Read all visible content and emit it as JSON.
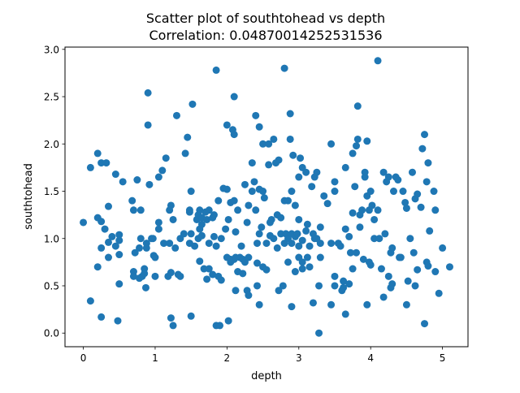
{
  "chart_data": {
    "type": "scatter",
    "title": "Scatter plot of southtohead vs depth",
    "subtitle": "Correlation: 0.04870014252531536",
    "xlabel": "depth",
    "ylabel": "southtohead",
    "xlim": [
      -0.255,
      5.355
    ],
    "ylim": [
      -0.144,
      3.024
    ],
    "xticks": [
      "0",
      "1",
      "2",
      "3",
      "4",
      "5"
    ],
    "yticks": [
      "0.0",
      "0.5",
      "1.0",
      "1.5",
      "2.0",
      "2.5",
      "3.0"
    ],
    "grid": false,
    "legend": "none",
    "marker_color": "#1f77b4",
    "points": [
      [
        0.0,
        1.17
      ],
      [
        0.1,
        0.34
      ],
      [
        0.1,
        1.75
      ],
      [
        0.2,
        1.9
      ],
      [
        0.2,
        1.22
      ],
      [
        0.2,
        0.7
      ],
      [
        0.25,
        1.8
      ],
      [
        0.25,
        1.18
      ],
      [
        0.25,
        0.9
      ],
      [
        0.25,
        0.17
      ],
      [
        0.3,
        1.1
      ],
      [
        0.32,
        1.8
      ],
      [
        0.35,
        0.96
      ],
      [
        0.35,
        0.8
      ],
      [
        0.35,
        1.34
      ],
      [
        0.4,
        1.02
      ],
      [
        0.45,
        1.68
      ],
      [
        0.45,
        0.92
      ],
      [
        0.48,
        0.13
      ],
      [
        0.5,
        0.52
      ],
      [
        0.5,
        0.98
      ],
      [
        0.5,
        1.04
      ],
      [
        0.5,
        0.83
      ],
      [
        0.55,
        1.6
      ],
      [
        0.68,
        1.4
      ],
      [
        0.7,
        0.65
      ],
      [
        0.7,
        0.6
      ],
      [
        0.7,
        1.3
      ],
      [
        0.72,
        0.85
      ],
      [
        0.75,
        1.62
      ],
      [
        0.78,
        0.58
      ],
      [
        0.78,
        0.9
      ],
      [
        0.8,
        1.3
      ],
      [
        0.8,
        1.0
      ],
      [
        0.82,
        0.6
      ],
      [
        0.85,
        0.68
      ],
      [
        0.85,
        0.63
      ],
      [
        0.87,
        0.48
      ],
      [
        0.88,
        0.95
      ],
      [
        0.88,
        0.9
      ],
      [
        0.9,
        2.54
      ],
      [
        0.9,
        2.2
      ],
      [
        0.92,
        1.57
      ],
      [
        0.95,
        1.0
      ],
      [
        0.97,
        1.0
      ],
      [
        0.98,
        0.82
      ],
      [
        1.0,
        0.8
      ],
      [
        1.0,
        0.6
      ],
      [
        1.05,
        1.17
      ],
      [
        1.05,
        1.65
      ],
      [
        1.05,
        1.1
      ],
      [
        1.1,
        1.72
      ],
      [
        1.12,
        0.95
      ],
      [
        1.15,
        1.85
      ],
      [
        1.18,
        0.6
      ],
      [
        1.2,
        1.3
      ],
      [
        1.2,
        0.95
      ],
      [
        1.22,
        1.35
      ],
      [
        1.22,
        0.64
      ],
      [
        1.22,
        0.16
      ],
      [
        1.25,
        0.08
      ],
      [
        1.25,
        1.2
      ],
      [
        1.28,
        0.9
      ],
      [
        1.3,
        2.3
      ],
      [
        1.32,
        0.62
      ],
      [
        1.35,
        0.6
      ],
      [
        1.35,
        1.0
      ],
      [
        1.4,
        1.05
      ],
      [
        1.42,
        1.9
      ],
      [
        1.45,
        2.07
      ],
      [
        1.48,
        1.28
      ],
      [
        1.48,
        1.3
      ],
      [
        1.48,
        0.95
      ],
      [
        1.5,
        0.18
      ],
      [
        1.5,
        1.5
      ],
      [
        1.5,
        1.05
      ],
      [
        1.52,
        2.42
      ],
      [
        1.55,
        0.92
      ],
      [
        1.58,
        1.2
      ],
      [
        1.6,
        1.0
      ],
      [
        1.6,
        1.25
      ],
      [
        1.62,
        1.1
      ],
      [
        1.62,
        1.3
      ],
      [
        1.62,
        0.76
      ],
      [
        1.65,
        1.15
      ],
      [
        1.65,
        1.22
      ],
      [
        1.65,
        1.03
      ],
      [
        1.68,
        0.68
      ],
      [
        1.7,
        1.28
      ],
      [
        1.72,
        1.2
      ],
      [
        1.72,
        0.57
      ],
      [
        1.75,
        0.95
      ],
      [
        1.75,
        0.68
      ],
      [
        1.75,
        1.3
      ],
      [
        1.8,
        1.22
      ],
      [
        1.8,
        0.62
      ],
      [
        1.82,
        1.25
      ],
      [
        1.82,
        1.02
      ],
      [
        1.85,
        2.78
      ],
      [
        1.85,
        0.08
      ],
      [
        1.85,
        0.92
      ],
      [
        1.88,
        0.6
      ],
      [
        1.88,
        1.4
      ],
      [
        1.9,
        0.08
      ],
      [
        1.92,
        0.56
      ],
      [
        1.92,
        1.0
      ],
      [
        1.95,
        1.53
      ],
      [
        1.98,
        1.1
      ],
      [
        2.0,
        0.8
      ],
      [
        2.0,
        2.2
      ],
      [
        2.0,
        1.52
      ],
      [
        2.02,
        1.2
      ],
      [
        2.02,
        0.13
      ],
      [
        2.05,
        0.75
      ],
      [
        2.05,
        0.78
      ],
      [
        2.05,
        1.38
      ],
      [
        2.08,
        2.15
      ],
      [
        2.1,
        2.5
      ],
      [
        2.1,
        2.1
      ],
      [
        2.1,
        1.4
      ],
      [
        2.1,
        0.78
      ],
      [
        2.12,
        0.8
      ],
      [
        2.12,
        0.45
      ],
      [
        2.12,
        1.07
      ],
      [
        2.15,
        0.65
      ],
      [
        2.15,
        1.3
      ],
      [
        2.18,
        0.8
      ],
      [
        2.2,
        0.92
      ],
      [
        2.22,
        0.63
      ],
      [
        2.22,
        0.78
      ],
      [
        2.25,
        1.57
      ],
      [
        2.25,
        0.75
      ],
      [
        2.28,
        0.45
      ],
      [
        2.28,
        1.17
      ],
      [
        2.3,
        1.35
      ],
      [
        2.3,
        0.4
      ],
      [
        2.3,
        0.8
      ],
      [
        2.35,
        1.8
      ],
      [
        2.35,
        1.5
      ],
      [
        2.38,
        1.6
      ],
      [
        2.4,
        2.3
      ],
      [
        2.4,
        1.3
      ],
      [
        2.42,
        0.5
      ],
      [
        2.42,
        0.95
      ],
      [
        2.42,
        0.74
      ],
      [
        2.45,
        2.18
      ],
      [
        2.45,
        0.3
      ],
      [
        2.45,
        1.52
      ],
      [
        2.45,
        1.05
      ],
      [
        2.48,
        1.12
      ],
      [
        2.5,
        2.0
      ],
      [
        2.5,
        1.5
      ],
      [
        2.5,
        0.7
      ],
      [
        2.52,
        1.43
      ],
      [
        2.55,
        0.67
      ],
      [
        2.55,
        0.95
      ],
      [
        2.58,
        2.0
      ],
      [
        2.58,
        1.78
      ],
      [
        2.6,
        1.03
      ],
      [
        2.6,
        1.17
      ],
      [
        2.62,
        1.2
      ],
      [
        2.65,
        2.05
      ],
      [
        2.65,
        1.0
      ],
      [
        2.68,
        1.8
      ],
      [
        2.7,
        1.25
      ],
      [
        2.7,
        0.9
      ],
      [
        2.72,
        1.83
      ],
      [
        2.72,
        0.45
      ],
      [
        2.75,
        1.05
      ],
      [
        2.75,
        1.22
      ],
      [
        2.78,
        0.5
      ],
      [
        2.8,
        2.8
      ],
      [
        2.8,
        1.4
      ],
      [
        2.8,
        0.95
      ],
      [
        2.82,
        1.05
      ],
      [
        2.85,
        1.0
      ],
      [
        2.85,
        1.4
      ],
      [
        2.85,
        0.75
      ],
      [
        2.88,
        2.32
      ],
      [
        2.88,
        2.05
      ],
      [
        2.9,
        1.5
      ],
      [
        2.9,
        1.05
      ],
      [
        2.9,
        0.95
      ],
      [
        2.9,
        0.28
      ],
      [
        2.92,
        1.88
      ],
      [
        2.95,
        1.35
      ],
      [
        2.95,
        1.02
      ],
      [
        2.95,
        0.65
      ],
      [
        2.98,
        1.05
      ],
      [
        3.0,
        1.65
      ],
      [
        3.0,
        0.8
      ],
      [
        3.0,
        1.2
      ],
      [
        3.0,
        0.92
      ],
      [
        3.02,
        1.85
      ],
      [
        3.05,
        1.75
      ],
      [
        3.05,
        0.98
      ],
      [
        3.05,
        0.75
      ],
      [
        3.05,
        0.68
      ],
      [
        3.1,
        1.7
      ],
      [
        3.1,
        1.08
      ],
      [
        3.12,
        1.15
      ],
      [
        3.12,
        0.8
      ],
      [
        3.15,
        0.7
      ],
      [
        3.15,
        0.92
      ],
      [
        3.18,
        1.55
      ],
      [
        3.2,
        1.05
      ],
      [
        3.2,
        0.32
      ],
      [
        3.22,
        1.65
      ],
      [
        3.22,
        1.0
      ],
      [
        3.25,
        1.7
      ],
      [
        3.25,
        1.0
      ],
      [
        3.28,
        0.5
      ],
      [
        3.28,
        0.0
      ],
      [
        3.3,
        1.12
      ],
      [
        3.3,
        0.95
      ],
      [
        3.3,
        0.8
      ],
      [
        3.35,
        1.45
      ],
      [
        3.4,
        1.37
      ],
      [
        3.45,
        2.0
      ],
      [
        3.45,
        0.3
      ],
      [
        3.45,
        0.95
      ],
      [
        3.5,
        1.5
      ],
      [
        3.5,
        1.6
      ],
      [
        3.5,
        0.6
      ],
      [
        3.5,
        0.5
      ],
      [
        3.55,
        0.95
      ],
      [
        3.58,
        0.92
      ],
      [
        3.6,
        0.45
      ],
      [
        3.62,
        0.48
      ],
      [
        3.62,
        0.55
      ],
      [
        3.65,
        1.75
      ],
      [
        3.65,
        1.1
      ],
      [
        3.65,
        0.2
      ],
      [
        3.7,
        1.02
      ],
      [
        3.7,
        0.52
      ],
      [
        3.72,
        0.85
      ],
      [
        3.75,
        1.9
      ],
      [
        3.75,
        1.27
      ],
      [
        3.75,
        0.68
      ],
      [
        3.78,
        1.55
      ],
      [
        3.8,
        0.85
      ],
      [
        3.8,
        1.98
      ],
      [
        3.82,
        2.4
      ],
      [
        3.82,
        2.05
      ],
      [
        3.85,
        1.12
      ],
      [
        3.85,
        1.25
      ],
      [
        3.88,
        1.3
      ],
      [
        3.9,
        0.78
      ],
      [
        3.92,
        1.65
      ],
      [
        3.92,
        1.7
      ],
      [
        3.95,
        2.03
      ],
      [
        3.95,
        0.3
      ],
      [
        3.95,
        1.45
      ],
      [
        3.98,
        1.3
      ],
      [
        3.98,
        0.75
      ],
      [
        4.0,
        0.72
      ],
      [
        4.0,
        1.5
      ],
      [
        4.02,
        1.35
      ],
      [
        4.05,
        1.2
      ],
      [
        4.05,
        1.0
      ],
      [
        4.1,
        2.88
      ],
      [
        4.1,
        1.3
      ],
      [
        4.12,
        1.0
      ],
      [
        4.15,
        0.68
      ],
      [
        4.18,
        0.38
      ],
      [
        4.18,
        1.7
      ],
      [
        4.2,
        1.05
      ],
      [
        4.22,
        1.6
      ],
      [
        4.25,
        1.65
      ],
      [
        4.25,
        0.6
      ],
      [
        4.28,
        0.48
      ],
      [
        4.28,
        0.85
      ],
      [
        4.3,
        0.9
      ],
      [
        4.3,
        0.52
      ],
      [
        4.32,
        1.5
      ],
      [
        4.35,
        1.65
      ],
      [
        4.38,
        1.62
      ],
      [
        4.4,
        0.8
      ],
      [
        4.42,
        0.8
      ],
      [
        4.45,
        1.5
      ],
      [
        4.48,
        1.38
      ],
      [
        4.5,
        0.3
      ],
      [
        4.5,
        1.32
      ],
      [
        4.52,
        0.55
      ],
      [
        4.55,
        1.0
      ],
      [
        4.58,
        1.7
      ],
      [
        4.6,
        0.85
      ],
      [
        4.62,
        1.42
      ],
      [
        4.62,
        0.5
      ],
      [
        4.65,
        1.47
      ],
      [
        4.65,
        0.67
      ],
      [
        4.7,
        1.33
      ],
      [
        4.72,
        1.95
      ],
      [
        4.75,
        0.1
      ],
      [
        4.75,
        2.1
      ],
      [
        4.78,
        0.75
      ],
      [
        4.78,
        1.6
      ],
      [
        4.8,
        1.8
      ],
      [
        4.8,
        0.71
      ],
      [
        4.82,
        1.08
      ],
      [
        4.88,
        1.5
      ],
      [
        4.9,
        0.65
      ],
      [
        4.9,
        1.3
      ],
      [
        4.95,
        0.42
      ],
      [
        5.0,
        0.9
      ],
      [
        5.1,
        0.7
      ]
    ]
  }
}
